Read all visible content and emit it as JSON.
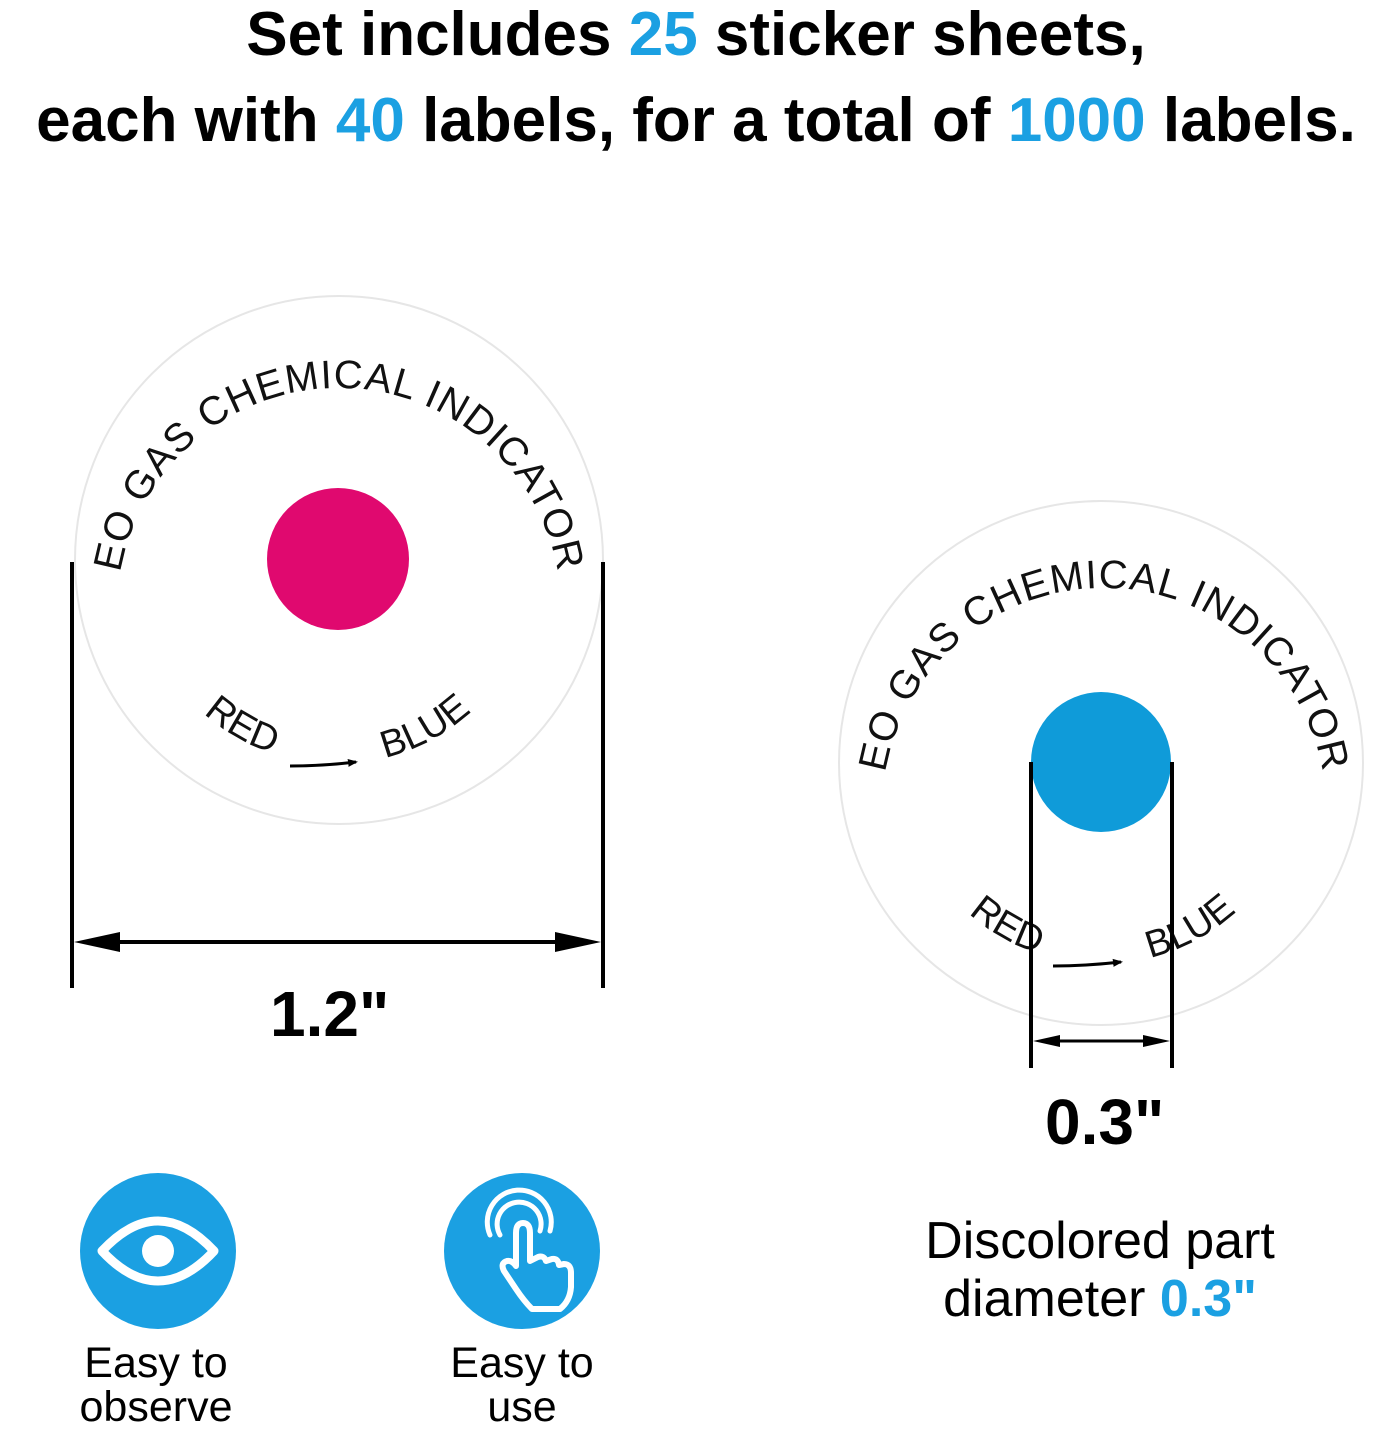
{
  "headline": {
    "line1_pre": "Set includes ",
    "line1_num": "25",
    "line1_post": " sticker sheets,",
    "line2_pre": "each with ",
    "line2_num1": "40",
    "line2_mid": " labels, for a total of ",
    "line2_num2": "1000",
    "line2_post": " labels."
  },
  "label_left": {
    "top_text": "EO GAS CHEMICAL INDICATOR",
    "from_text": "RED",
    "to_text": "BLUE",
    "dot_color": "#e0096f"
  },
  "label_right": {
    "top_text": "EO GAS CHEMICAL INDICATOR",
    "from_text": "RED",
    "to_text": "BLUE",
    "dot_color": "#0f9bd9"
  },
  "dimensions": {
    "label_diameter": "1.2\"",
    "dot_diameter": "0.3\""
  },
  "features": [
    {
      "line1": "Easy to",
      "line2": "observe",
      "icon": "eye-icon"
    },
    {
      "line1": "Easy to",
      "line2": "use",
      "icon": "hand-touch-icon"
    }
  ],
  "discolored": {
    "line1": "Discolored part",
    "line2_pre": "diameter ",
    "line2_val": "0.3\""
  },
  "colors": {
    "accent": "#1ba0e2",
    "red_dot": "#e0096f",
    "blue_dot": "#0f9bd9"
  }
}
